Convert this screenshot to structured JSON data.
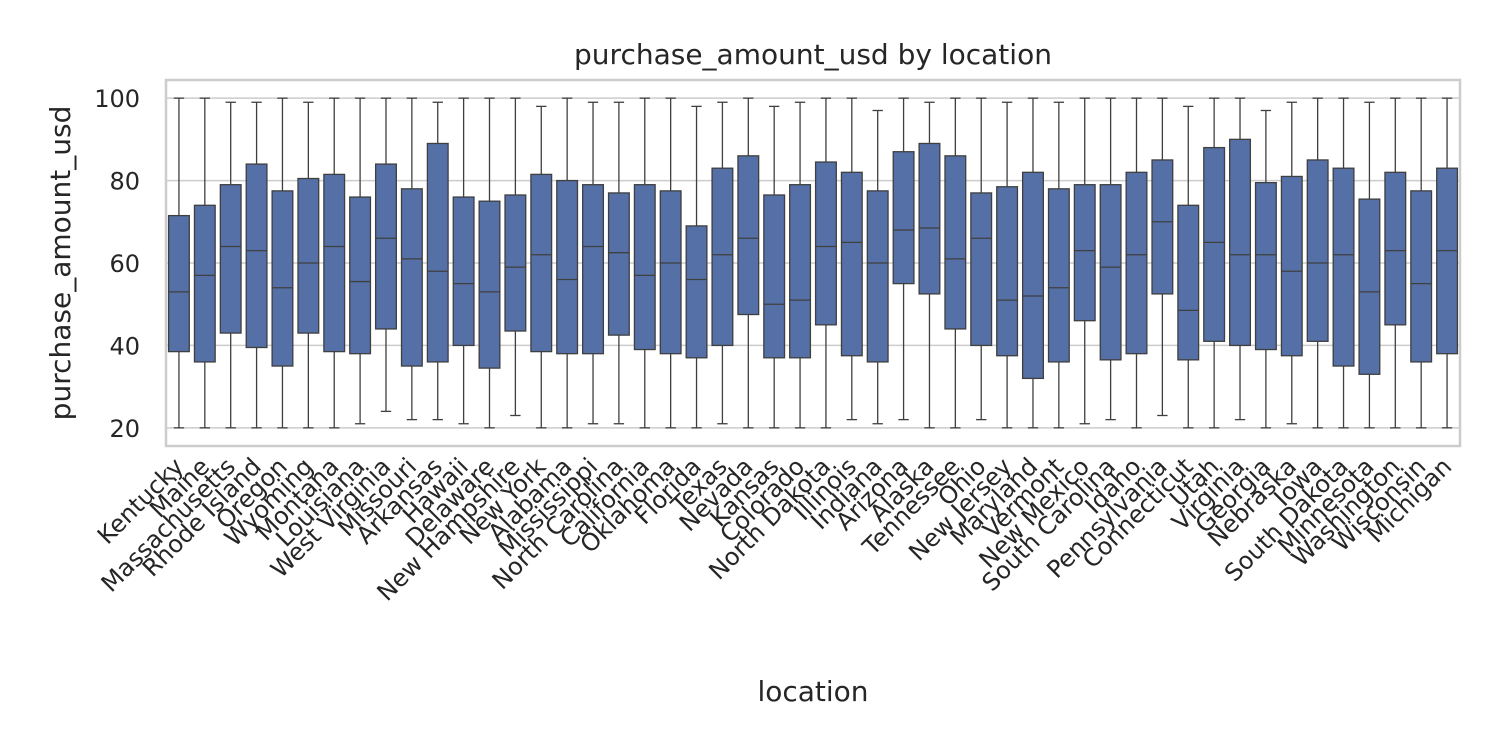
{
  "chart_data": {
    "type": "box",
    "title": "purchase_amount_usd by location",
    "xlabel": "location",
    "ylabel": "purchase_amount_usd",
    "ylim": [
      15.6,
      104.4
    ],
    "yticks": [
      20,
      40,
      60,
      80,
      100
    ],
    "grid": true,
    "box_color": "#5470a7",
    "line_color": "#3f3f3f",
    "grid_color": "#cccccc",
    "categories": [
      "Kentucky",
      "Maine",
      "Massachusetts",
      "Rhode Island",
      "Oregon",
      "Wyoming",
      "Montana",
      "Louisiana",
      "West Virginia",
      "Missouri",
      "Arkansas",
      "Hawaii",
      "Delaware",
      "New Hampshire",
      "New York",
      "Alabama",
      "Mississippi",
      "North Carolina",
      "California",
      "Oklahoma",
      "Florida",
      "Texas",
      "Nevada",
      "Kansas",
      "Colorado",
      "North Dakota",
      "Illinois",
      "Indiana",
      "Arizona",
      "Alaska",
      "Tennessee",
      "Ohio",
      "New Jersey",
      "Maryland",
      "Vermont",
      "New Mexico",
      "South Carolina",
      "Idaho",
      "Pennsylvania",
      "Connecticut",
      "Utah",
      "Virginia",
      "Georgia",
      "Nebraska",
      "Iowa",
      "South Dakota",
      "Minnesota",
      "Washington",
      "Wisconsin",
      "Michigan"
    ],
    "boxes": [
      {
        "min": 20,
        "q1": 38.5,
        "median": 53,
        "q3": 71.5,
        "max": 100
      },
      {
        "min": 20,
        "q1": 36,
        "median": 57,
        "q3": 74,
        "max": 100
      },
      {
        "min": 20,
        "q1": 43,
        "median": 64,
        "q3": 79,
        "max": 99
      },
      {
        "min": 20,
        "q1": 39.5,
        "median": 63,
        "q3": 84,
        "max": 99
      },
      {
        "min": 20,
        "q1": 35,
        "median": 54,
        "q3": 77.5,
        "max": 100
      },
      {
        "min": 20,
        "q1": 43,
        "median": 60,
        "q3": 80.5,
        "max": 99
      },
      {
        "min": 20,
        "q1": 38.5,
        "median": 64,
        "q3": 81.5,
        "max": 100
      },
      {
        "min": 21,
        "q1": 38,
        "median": 55.5,
        "q3": 76,
        "max": 100
      },
      {
        "min": 24,
        "q1": 44,
        "median": 66,
        "q3": 84,
        "max": 100
      },
      {
        "min": 22,
        "q1": 35,
        "median": 61,
        "q3": 78,
        "max": 100
      },
      {
        "min": 22,
        "q1": 36,
        "median": 58,
        "q3": 89,
        "max": 99
      },
      {
        "min": 21,
        "q1": 40,
        "median": 55,
        "q3": 76,
        "max": 100
      },
      {
        "min": 20,
        "q1": 34.5,
        "median": 53,
        "q3": 75,
        "max": 100
      },
      {
        "min": 23,
        "q1": 43.5,
        "median": 59,
        "q3": 76.5,
        "max": 100
      },
      {
        "min": 20,
        "q1": 38.5,
        "median": 62,
        "q3": 81.5,
        "max": 98
      },
      {
        "min": 20,
        "q1": 38,
        "median": 56,
        "q3": 80,
        "max": 100
      },
      {
        "min": 21,
        "q1": 38,
        "median": 64,
        "q3": 79,
        "max": 99
      },
      {
        "min": 21,
        "q1": 42.5,
        "median": 62.5,
        "q3": 77,
        "max": 99
      },
      {
        "min": 20,
        "q1": 39,
        "median": 57,
        "q3": 79,
        "max": 100
      },
      {
        "min": 20,
        "q1": 38,
        "median": 60,
        "q3": 77.5,
        "max": 100
      },
      {
        "min": 20,
        "q1": 37,
        "median": 56,
        "q3": 69,
        "max": 98
      },
      {
        "min": 21,
        "q1": 40,
        "median": 62,
        "q3": 83,
        "max": 99
      },
      {
        "min": 20,
        "q1": 47.5,
        "median": 66,
        "q3": 86,
        "max": 100
      },
      {
        "min": 20,
        "q1": 37,
        "median": 50,
        "q3": 76.5,
        "max": 98
      },
      {
        "min": 20,
        "q1": 37,
        "median": 51,
        "q3": 79,
        "max": 99
      },
      {
        "min": 20,
        "q1": 45,
        "median": 64,
        "q3": 84.5,
        "max": 100
      },
      {
        "min": 22,
        "q1": 37.5,
        "median": 65,
        "q3": 82,
        "max": 100
      },
      {
        "min": 21,
        "q1": 36,
        "median": 60,
        "q3": 77.5,
        "max": 97
      },
      {
        "min": 22,
        "q1": 55,
        "median": 68,
        "q3": 87,
        "max": 100
      },
      {
        "min": 20,
        "q1": 52.5,
        "median": 68.5,
        "q3": 89,
        "max": 99
      },
      {
        "min": 20,
        "q1": 44,
        "median": 61,
        "q3": 86,
        "max": 100
      },
      {
        "min": 22,
        "q1": 40,
        "median": 66,
        "q3": 77,
        "max": 100
      },
      {
        "min": 20,
        "q1": 37.5,
        "median": 51,
        "q3": 78.5,
        "max": 99
      },
      {
        "min": 20,
        "q1": 32,
        "median": 52,
        "q3": 82,
        "max": 100
      },
      {
        "min": 20,
        "q1": 36,
        "median": 54,
        "q3": 78,
        "max": 99
      },
      {
        "min": 21,
        "q1": 46,
        "median": 63,
        "q3": 79,
        "max": 100
      },
      {
        "min": 22,
        "q1": 36.5,
        "median": 59,
        "q3": 79,
        "max": 100
      },
      {
        "min": 20,
        "q1": 38,
        "median": 62,
        "q3": 82,
        "max": 100
      },
      {
        "min": 23,
        "q1": 52.5,
        "median": 70,
        "q3": 85,
        "max": 100
      },
      {
        "min": 20,
        "q1": 36.5,
        "median": 48.5,
        "q3": 74,
        "max": 98
      },
      {
        "min": 20,
        "q1": 41,
        "median": 65,
        "q3": 88,
        "max": 100
      },
      {
        "min": 22,
        "q1": 40,
        "median": 62,
        "q3": 90,
        "max": 100
      },
      {
        "min": 20,
        "q1": 39,
        "median": 62,
        "q3": 79.5,
        "max": 97
      },
      {
        "min": 21,
        "q1": 37.5,
        "median": 58,
        "q3": 81,
        "max": 99
      },
      {
        "min": 20,
        "q1": 41,
        "median": 60,
        "q3": 85,
        "max": 100
      },
      {
        "min": 20,
        "q1": 35,
        "median": 62,
        "q3": 83,
        "max": 100
      },
      {
        "min": 20,
        "q1": 33,
        "median": 53,
        "q3": 75.5,
        "max": 99
      },
      {
        "min": 20,
        "q1": 45,
        "median": 63,
        "q3": 82,
        "max": 100
      },
      {
        "min": 20,
        "q1": 36,
        "median": 55,
        "q3": 77.5,
        "max": 100
      },
      {
        "min": 20,
        "q1": 38,
        "median": 63,
        "q3": 83,
        "max": 100
      }
    ]
  }
}
